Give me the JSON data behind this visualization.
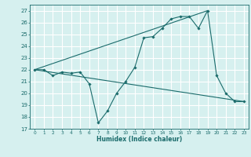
{
  "bg_color": "#d6f0ef",
  "grid_color": "#ffffff",
  "line_color": "#1a6b6b",
  "xlabel": "Humidex (Indice chaleur)",
  "ylim": [
    17,
    27.5
  ],
  "xlim": [
    -0.5,
    23.5
  ],
  "yticks": [
    17,
    18,
    19,
    20,
    21,
    22,
    23,
    24,
    25,
    26,
    27
  ],
  "xticks": [
    0,
    1,
    2,
    3,
    4,
    5,
    6,
    7,
    8,
    9,
    10,
    11,
    12,
    13,
    14,
    15,
    16,
    17,
    18,
    19,
    20,
    21,
    22,
    23
  ],
  "main_x": [
    0,
    1,
    2,
    3,
    4,
    5,
    6,
    7,
    8,
    9,
    10,
    11,
    12,
    13,
    14,
    15,
    16,
    17,
    18,
    19,
    20,
    21,
    22,
    23
  ],
  "main_y": [
    22,
    22,
    21.5,
    21.8,
    21.7,
    21.8,
    20.8,
    17.5,
    18.5,
    20,
    21,
    22.2,
    24.7,
    24.8,
    25.5,
    26.3,
    26.5,
    26.5,
    25.5,
    27,
    21.5,
    20,
    19.3,
    19.3
  ],
  "line2_x": [
    0,
    19
  ],
  "line2_y": [
    22,
    27
  ],
  "line3_x": [
    0,
    23
  ],
  "line3_y": [
    22,
    19.3
  ]
}
